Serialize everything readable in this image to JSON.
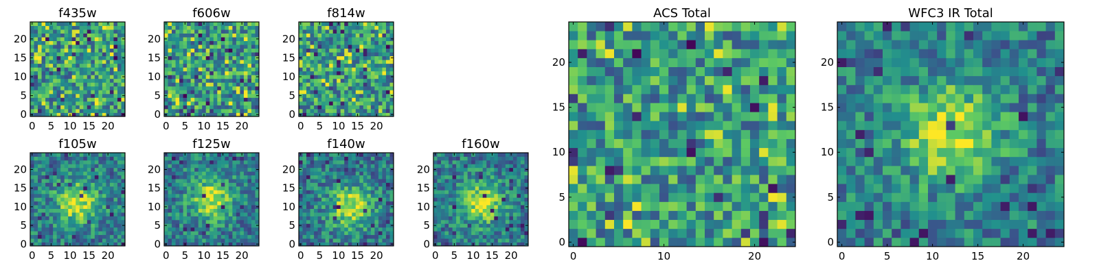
{
  "colormap": [
    "#440154",
    "#3b528b",
    "#21908d",
    "#5dc963",
    "#fde725"
  ],
  "chart_data": [
    {
      "type": "heatmap",
      "title": "f435w",
      "size": 25,
      "colormap": "viridis",
      "pattern": "noise",
      "seed": 11,
      "xlim": [
        -0.5,
        24.5
      ],
      "ylim": [
        -0.5,
        24.5
      ],
      "xticks": [
        0,
        5,
        10,
        15,
        20
      ],
      "yticks": [
        0,
        5,
        10,
        15,
        20
      ]
    },
    {
      "type": "heatmap",
      "title": "f606w",
      "size": 25,
      "colormap": "viridis",
      "pattern": "noise",
      "seed": 23,
      "xlim": [
        -0.5,
        24.5
      ],
      "ylim": [
        -0.5,
        24.5
      ],
      "xticks": [
        0,
        5,
        10,
        15,
        20
      ],
      "yticks": [
        0,
        5,
        10,
        15,
        20
      ]
    },
    {
      "type": "heatmap",
      "title": "f814w",
      "size": 25,
      "colormap": "viridis",
      "pattern": "noise",
      "seed": 37,
      "xlim": [
        -0.5,
        24.5
      ],
      "ylim": [
        -0.5,
        24.5
      ],
      "xticks": [
        0,
        5,
        10,
        15,
        20
      ],
      "yticks": [
        0,
        5,
        10,
        15,
        20
      ]
    },
    {
      "type": "heatmap",
      "title": "f105w",
      "size": 25,
      "colormap": "viridis",
      "pattern": "source",
      "center": [
        12,
        11
      ],
      "seed": 41,
      "xlim": [
        -0.5,
        24.5
      ],
      "ylim": [
        -0.5,
        24.5
      ],
      "xticks": [
        0,
        5,
        10,
        15,
        20
      ],
      "yticks": [
        0,
        5,
        10,
        15,
        20
      ]
    },
    {
      "type": "heatmap",
      "title": "f125w",
      "size": 25,
      "colormap": "viridis",
      "pattern": "source",
      "center": [
        12,
        12
      ],
      "seed": 53,
      "xlim": [
        -0.5,
        24.5
      ],
      "ylim": [
        -0.5,
        24.5
      ],
      "xticks": [
        0,
        5,
        10,
        15,
        20
      ],
      "yticks": [
        0,
        5,
        10,
        15,
        20
      ]
    },
    {
      "type": "heatmap",
      "title": "f140w",
      "size": 25,
      "colormap": "viridis",
      "pattern": "source",
      "center": [
        13,
        10
      ],
      "seed": 67,
      "xlim": [
        -0.5,
        24.5
      ],
      "ylim": [
        -0.5,
        24.5
      ],
      "xticks": [
        0,
        5,
        10,
        15,
        20
      ],
      "yticks": [
        0,
        5,
        10,
        15,
        20
      ]
    },
    {
      "type": "heatmap",
      "title": "f160w",
      "size": 25,
      "colormap": "viridis",
      "pattern": "source",
      "center": [
        12,
        11
      ],
      "seed": 79,
      "xlim": [
        -0.5,
        24.5
      ],
      "ylim": [
        -0.5,
        24.5
      ],
      "xticks": [
        0,
        5,
        10,
        15,
        20
      ],
      "yticks": [
        0,
        5,
        10,
        15,
        20
      ]
    },
    {
      "type": "heatmap",
      "title": "ACS Total",
      "size": 25,
      "colormap": "viridis",
      "pattern": "noise",
      "seed": 97,
      "xlim": [
        -0.5,
        24.5
      ],
      "ylim": [
        -0.5,
        24.5
      ],
      "xticks": [
        0,
        10,
        20
      ],
      "yticks": [
        0,
        5,
        10,
        15,
        20
      ]
    },
    {
      "type": "heatmap",
      "title": "WFC3 IR Total",
      "size": 25,
      "colormap": "viridis",
      "pattern": "source",
      "center": [
        12,
        12
      ],
      "seed": 113,
      "xlim": [
        -0.5,
        24.5
      ],
      "ylim": [
        -0.5,
        24.5
      ],
      "xticks": [
        0,
        5,
        10,
        15,
        20
      ],
      "yticks": [
        0,
        5,
        10,
        15,
        20
      ]
    }
  ]
}
